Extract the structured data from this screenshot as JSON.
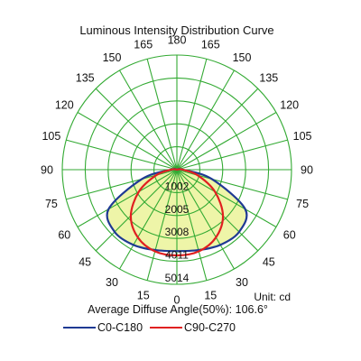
{
  "title": "Luminous Intensity Distribution Curve",
  "unit_text": "Unit: cd",
  "avg_text": "Average Diffuse Angle(50%): 106.6°",
  "colors": {
    "grid": "#33aa33",
    "fill": "#eef5a8",
    "c0": "#1f3a93",
    "c90": "#e02020"
  },
  "chart_data": {
    "type": "polar",
    "title": "Luminous Intensity Distribution Curve",
    "angle_labels_left": [
      "180",
      "165",
      "150",
      "135",
      "120",
      "105",
      "90",
      "75",
      "60",
      "45",
      "30",
      "15",
      "0"
    ],
    "angle_labels_right": [
      "165",
      "150",
      "135",
      "120",
      "105",
      "90",
      "75",
      "60",
      "45",
      "30",
      "15"
    ],
    "angle_ticks": [
      180,
      165,
      150,
      135,
      120,
      105,
      90,
      75,
      60,
      45,
      30,
      15,
      0
    ],
    "ring_labels": [
      "1002",
      "2005",
      "3008",
      "4011",
      "5014"
    ],
    "ring_values": [
      1002,
      2005,
      3008,
      4011,
      5014
    ],
    "r_max": 5014,
    "grid": true,
    "legend_position": "bottom",
    "series": [
      {
        "name": "C0-C180",
        "angles": [
          0,
          15,
          30,
          45,
          60,
          75,
          90,
          105,
          120,
          135,
          150,
          165,
          180
        ],
        "values": [
          3560,
          3640,
          3800,
          3850,
          3450,
          1580,
          260,
          50,
          15,
          10,
          5,
          0,
          0
        ]
      },
      {
        "name": "C90-C270",
        "angles": [
          0,
          15,
          30,
          45,
          60,
          75,
          90,
          105,
          120,
          135,
          150,
          165,
          180
        ],
        "values": [
          3750,
          3700,
          3420,
          2850,
          1920,
          940,
          260,
          50,
          15,
          10,
          5,
          0,
          0
        ]
      }
    ]
  },
  "legend": [
    {
      "label": "C0-C180"
    },
    {
      "label": "C90-C270"
    }
  ]
}
